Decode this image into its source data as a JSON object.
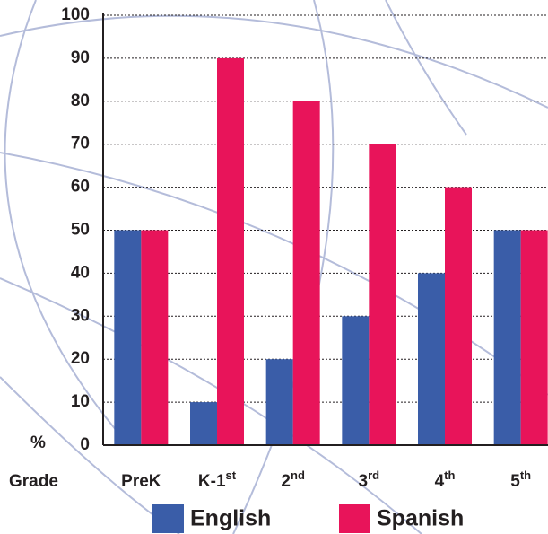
{
  "chart_data": {
    "type": "bar",
    "categories": [
      "PreK",
      "K-1st",
      "2nd",
      "3rd",
      "4th",
      "5th"
    ],
    "x_label": "Grade",
    "y_unit_label": "%",
    "series": [
      {
        "name": "English",
        "color": "#3a5da8",
        "values": [
          50,
          10,
          20,
          30,
          40,
          50
        ]
      },
      {
        "name": "Spanish",
        "color": "#e8145a",
        "values": [
          50,
          90,
          80,
          70,
          60,
          50
        ]
      }
    ],
    "ylim": [
      0,
      100
    ],
    "yticks": [
      0,
      10,
      20,
      30,
      40,
      50,
      60,
      70,
      80,
      90,
      100
    ],
    "grid": true
  }
}
